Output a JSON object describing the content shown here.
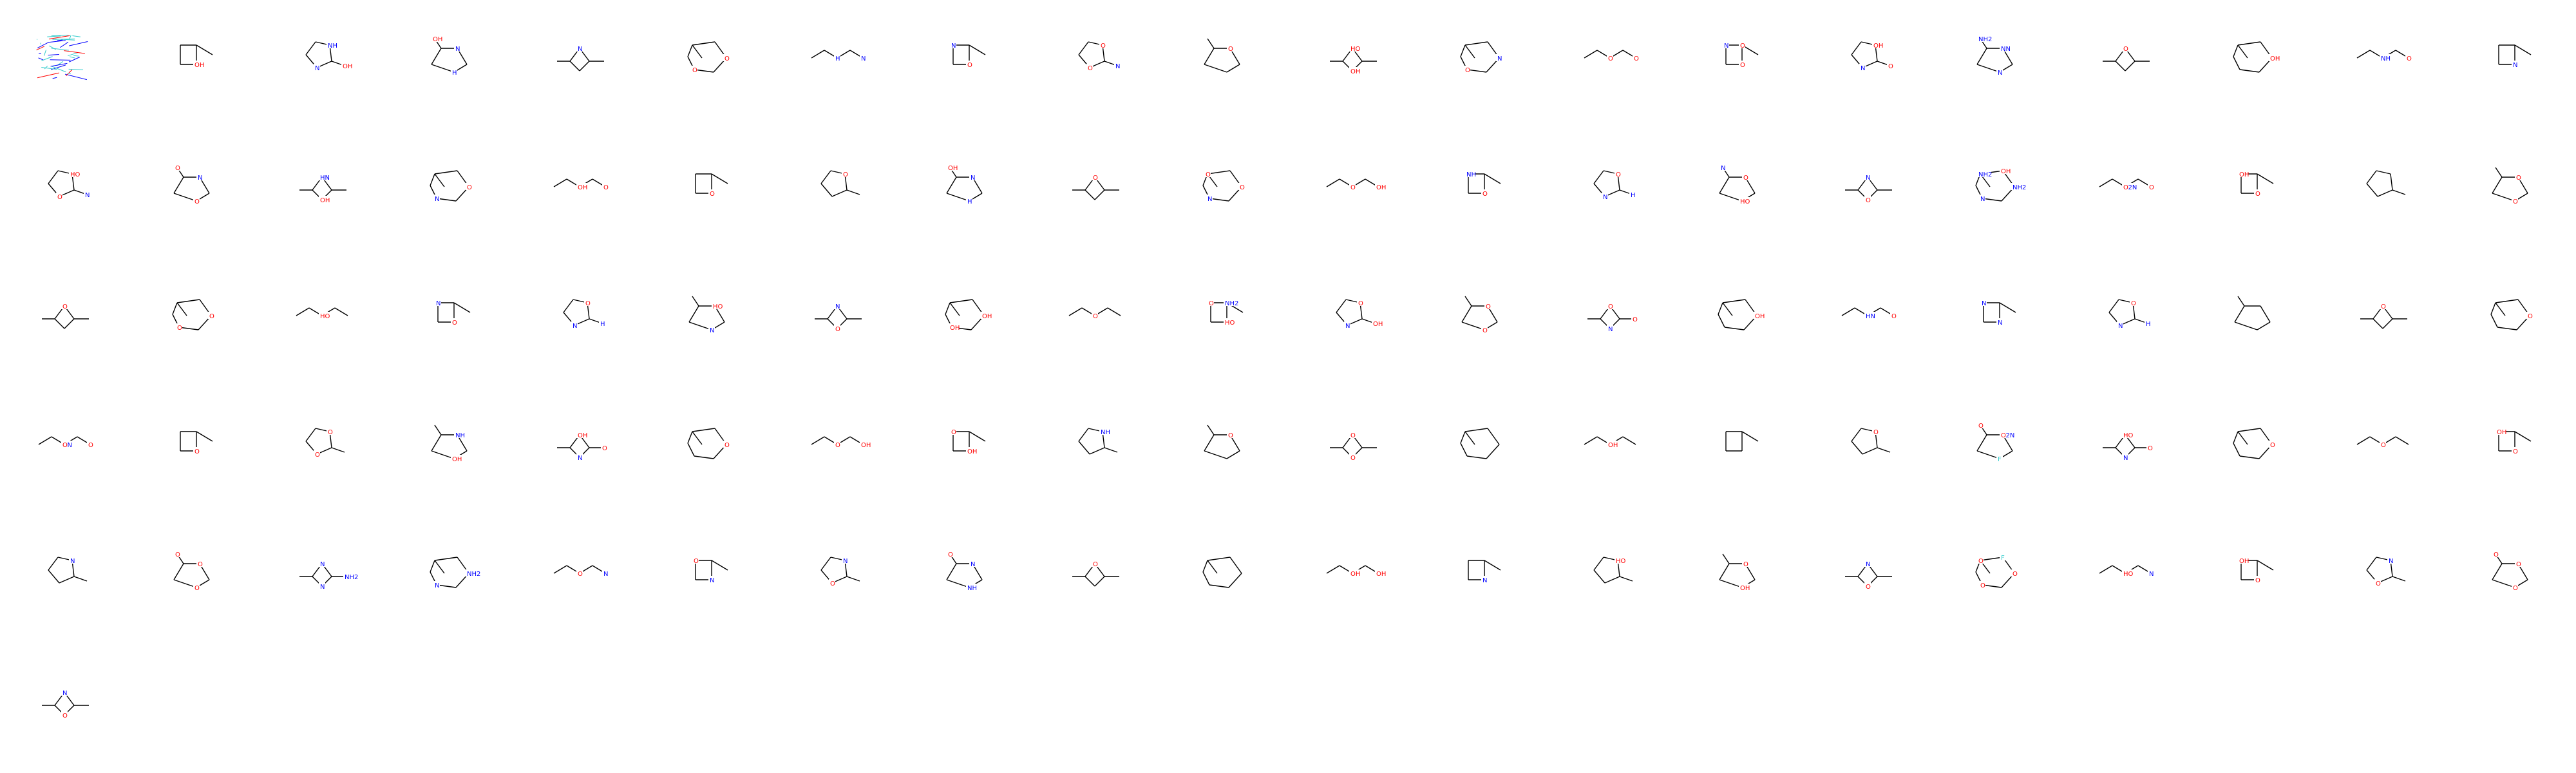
{
  "grid": {
    "columns": 20,
    "rows": 6,
    "count": 101
  },
  "colors": {
    "bond": "#000000",
    "O": "#ff0000",
    "N": "#0000ff",
    "F": "#33cccc",
    "cluster_cyan": "#33cccc"
  },
  "molecules": [
    {
      "id": "m0",
      "kind": "cluster"
    },
    {
      "id": "m1",
      "labels": [
        {
          "t": "OH",
          "c": "O"
        }
      ]
    },
    {
      "id": "m2",
      "labels": [
        {
          "t": "NH",
          "c": "N"
        },
        {
          "t": "N",
          "c": "N"
        },
        {
          "t": "OH",
          "c": "O"
        }
      ]
    },
    {
      "id": "m3",
      "labels": [
        {
          "t": "N",
          "c": "N"
        },
        {
          "t": "H",
          "c": "N"
        },
        {
          "t": "OH",
          "c": "O"
        }
      ]
    },
    {
      "id": "m4",
      "labels": [
        {
          "t": "N",
          "c": "N"
        }
      ]
    },
    {
      "id": "m5",
      "labels": [
        {
          "t": "O",
          "c": "O"
        },
        {
          "t": "O",
          "c": "O"
        }
      ]
    },
    {
      "id": "m6",
      "labels": [
        {
          "t": "O",
          "c": "O"
        },
        {
          "t": "N",
          "c": "N"
        },
        {
          "t": "H",
          "c": "N"
        }
      ]
    },
    {
      "id": "m7",
      "labels": [
        {
          "t": "O",
          "c": "O"
        },
        {
          "t": "N",
          "c": "N"
        }
      ]
    },
    {
      "id": "m8",
      "labels": [
        {
          "t": "O",
          "c": "O"
        },
        {
          "t": "O",
          "c": "O"
        },
        {
          "t": "N",
          "c": "N"
        }
      ]
    },
    {
      "id": "m9",
      "labels": [
        {
          "t": "O",
          "c": "O"
        }
      ]
    },
    {
      "id": "m10",
      "labels": [
        {
          "t": "HO",
          "c": "O"
        },
        {
          "t": "OH",
          "c": "O"
        }
      ]
    },
    {
      "id": "m11",
      "labels": [
        {
          "t": "N",
          "c": "N"
        },
        {
          "t": "O",
          "c": "O"
        }
      ]
    },
    {
      "id": "m12",
      "labels": [
        {
          "t": "O",
          "c": "O"
        },
        {
          "t": "O",
          "c": "O"
        }
      ]
    },
    {
      "id": "m13",
      "labels": [
        {
          "t": "O",
          "c": "O"
        },
        {
          "t": "N",
          "c": "N"
        },
        {
          "t": "O",
          "c": "O"
        }
      ]
    },
    {
      "id": "m14",
      "labels": [
        {
          "t": "OH",
          "c": "O"
        },
        {
          "t": "N",
          "c": "N"
        },
        {
          "t": "O",
          "c": "O"
        }
      ]
    },
    {
      "id": "m15",
      "labels": [
        {
          "t": "HN",
          "c": "N"
        },
        {
          "t": "N",
          "c": "N"
        },
        {
          "t": "NH2",
          "c": "N"
        },
        {
          "t": "N",
          "c": "N"
        }
      ]
    },
    {
      "id": "m16",
      "labels": [
        {
          "t": "O",
          "c": "O"
        }
      ]
    },
    {
      "id": "m17",
      "labels": [
        {
          "t": "OH",
          "c": "O"
        }
      ]
    },
    {
      "id": "m18",
      "labels": [
        {
          "t": "O",
          "c": "O"
        },
        {
          "t": "O",
          "c": "O"
        },
        {
          "t": "NH",
          "c": "N"
        }
      ]
    },
    {
      "id": "m19",
      "labels": [
        {
          "t": "N",
          "c": "N"
        }
      ]
    },
    {
      "id": "m20",
      "labels": [
        {
          "t": "HO",
          "c": "O"
        },
        {
          "t": "O",
          "c": "O"
        },
        {
          "t": "N",
          "c": "N"
        }
      ]
    },
    {
      "id": "m21",
      "labels": [
        {
          "t": "N",
          "c": "N"
        },
        {
          "t": "O",
          "c": "O"
        },
        {
          "t": "O",
          "c": "O"
        }
      ]
    },
    {
      "id": "m22",
      "labels": [
        {
          "t": "HN",
          "c": "N"
        },
        {
          "t": "OH",
          "c": "O"
        }
      ]
    },
    {
      "id": "m23",
      "labels": [
        {
          "t": "O",
          "c": "O"
        },
        {
          "t": "N",
          "c": "N"
        }
      ]
    },
    {
      "id": "m24",
      "labels": [
        {
          "t": "OH",
          "c": "O"
        },
        {
          "t": "O",
          "c": "O"
        },
        {
          "t": "O",
          "c": "O"
        }
      ]
    },
    {
      "id": "m25",
      "labels": [
        {
          "t": "O",
          "c": "O"
        }
      ]
    },
    {
      "id": "m26",
      "labels": [
        {
          "t": "O",
          "c": "O"
        }
      ]
    },
    {
      "id": "m27",
      "labels": [
        {
          "t": "N",
          "c": "N"
        },
        {
          "t": "H",
          "c": "N"
        },
        {
          "t": "OH",
          "c": "O"
        }
      ]
    },
    {
      "id": "m28",
      "labels": [
        {
          "t": "O",
          "c": "O"
        }
      ]
    },
    {
      "id": "m29",
      "labels": [
        {
          "t": "O",
          "c": "O"
        },
        {
          "t": "N",
          "c": "N"
        },
        {
          "t": "O",
          "c": "O"
        }
      ]
    },
    {
      "id": "m30",
      "labels": [
        {
          "t": "O",
          "c": "O"
        },
        {
          "t": "OH",
          "c": "O"
        }
      ]
    },
    {
      "id": "m31",
      "labels": [
        {
          "t": "O",
          "c": "O"
        },
        {
          "t": "NH",
          "c": "N"
        }
      ]
    },
    {
      "id": "m32",
      "labels": [
        {
          "t": "O",
          "c": "O"
        },
        {
          "t": "N",
          "c": "N"
        },
        {
          "t": "H",
          "c": "N"
        }
      ]
    },
    {
      "id": "m33",
      "labels": [
        {
          "t": "O",
          "c": "O"
        },
        {
          "t": "HO",
          "c": "O"
        },
        {
          "t": "N",
          "c": "N"
        }
      ]
    },
    {
      "id": "m34",
      "labels": [
        {
          "t": "N",
          "c": "N"
        },
        {
          "t": "O",
          "c": "O"
        }
      ]
    },
    {
      "id": "m35",
      "labels": [
        {
          "t": "NH2",
          "c": "N"
        },
        {
          "t": "N",
          "c": "N"
        },
        {
          "t": "NH2",
          "c": "N"
        },
        {
          "t": "OH",
          "c": "O"
        }
      ]
    },
    {
      "id": "m36",
      "labels": [
        {
          "t": "H2N",
          "c": "N"
        },
        {
          "t": "O",
          "c": "O"
        },
        {
          "t": "O",
          "c": "O"
        },
        {
          "t": "O",
          "c": "O"
        }
      ]
    },
    {
      "id": "m37",
      "labels": [
        {
          "t": "O",
          "c": "O"
        },
        {
          "t": "OH",
          "c": "O"
        }
      ]
    },
    {
      "id": "m38",
      "labels": []
    },
    {
      "id": "m39",
      "labels": [
        {
          "t": "O",
          "c": "O"
        },
        {
          "t": "O",
          "c": "O"
        }
      ]
    },
    {
      "id": "m40",
      "labels": [
        {
          "t": "O",
          "c": "O"
        }
      ]
    },
    {
      "id": "m41",
      "labels": [
        {
          "t": "O",
          "c": "O"
        },
        {
          "t": "O",
          "c": "O"
        }
      ]
    },
    {
      "id": "m42",
      "labels": [
        {
          "t": "HO",
          "c": "O"
        }
      ]
    },
    {
      "id": "m43",
      "labels": [
        {
          "t": "O",
          "c": "O"
        },
        {
          "t": "N",
          "c": "N"
        }
      ]
    },
    {
      "id": "m44",
      "labels": [
        {
          "t": "O",
          "c": "O"
        },
        {
          "t": "N",
          "c": "N"
        },
        {
          "t": "H",
          "c": "N"
        }
      ]
    },
    {
      "id": "m45",
      "labels": [
        {
          "t": "HO",
          "c": "O"
        },
        {
          "t": "N",
          "c": "N"
        }
      ]
    },
    {
      "id": "m46",
      "labels": [
        {
          "t": "N",
          "c": "N"
        },
        {
          "t": "O",
          "c": "O"
        }
      ]
    },
    {
      "id": "m47",
      "labels": [
        {
          "t": "OH",
          "c": "O"
        },
        {
          "t": "OH",
          "c": "O"
        }
      ]
    },
    {
      "id": "m48",
      "labels": [
        {
          "t": "O",
          "c": "O"
        }
      ]
    },
    {
      "id": "m49",
      "labels": [
        {
          "t": "HO",
          "c": "O"
        },
        {
          "t": "O",
          "c": "O"
        },
        {
          "t": "NH2",
          "c": "N"
        }
      ]
    },
    {
      "id": "m50",
      "labels": [
        {
          "t": "O",
          "c": "O"
        },
        {
          "t": "N",
          "c": "N"
        },
        {
          "t": "OH",
          "c": "O"
        }
      ]
    },
    {
      "id": "m51",
      "labels": [
        {
          "t": "O",
          "c": "O"
        },
        {
          "t": "O",
          "c": "O"
        }
      ]
    },
    {
      "id": "m52",
      "labels": [
        {
          "t": "O",
          "c": "O"
        },
        {
          "t": "N",
          "c": "N"
        },
        {
          "t": "O",
          "c": "O"
        }
      ]
    },
    {
      "id": "m53",
      "labels": [
        {
          "t": "OH",
          "c": "O"
        }
      ]
    },
    {
      "id": "m54",
      "labels": [
        {
          "t": "HN",
          "c": "N"
        },
        {
          "t": "O",
          "c": "O"
        }
      ]
    },
    {
      "id": "m55",
      "labels": [
        {
          "t": "N",
          "c": "N"
        },
        {
          "t": "N",
          "c": "N"
        }
      ]
    },
    {
      "id": "m56",
      "labels": [
        {
          "t": "O",
          "c": "O"
        },
        {
          "t": "N",
          "c": "N"
        },
        {
          "t": "H",
          "c": "N"
        },
        {
          "t": "O",
          "c": "O"
        }
      ]
    },
    {
      "id": "m57",
      "labels": []
    },
    {
      "id": "m58",
      "labels": [
        {
          "t": "O",
          "c": "O"
        }
      ]
    },
    {
      "id": "m59",
      "labels": [
        {
          "t": "O",
          "c": "O"
        }
      ]
    },
    {
      "id": "m60",
      "labels": [
        {
          "t": "HN",
          "c": "N"
        },
        {
          "t": "O",
          "c": "O"
        },
        {
          "t": "O",
          "c": "O"
        }
      ]
    },
    {
      "id": "m61",
      "labels": [
        {
          "t": "O",
          "c": "O"
        }
      ]
    },
    {
      "id": "m62",
      "labels": [
        {
          "t": "O",
          "c": "O"
        },
        {
          "t": "O",
          "c": "O"
        }
      ]
    },
    {
      "id": "m63",
      "labels": [
        {
          "t": "NH",
          "c": "N"
        },
        {
          "t": "OH",
          "c": "O"
        }
      ]
    },
    {
      "id": "m64",
      "labels": [
        {
          "t": "OH",
          "c": "O"
        },
        {
          "t": "N",
          "c": "N"
        },
        {
          "t": "O",
          "c": "O"
        }
      ]
    },
    {
      "id": "m65",
      "labels": [
        {
          "t": "O",
          "c": "O"
        }
      ]
    },
    {
      "id": "m66",
      "labels": [
        {
          "t": "O",
          "c": "O"
        },
        {
          "t": "OH",
          "c": "O"
        }
      ]
    },
    {
      "id": "m67",
      "labels": [
        {
          "t": "OH",
          "c": "O"
        },
        {
          "t": "O",
          "c": "O"
        }
      ]
    },
    {
      "id": "m68",
      "labels": [
        {
          "t": "NH",
          "c": "N"
        }
      ]
    },
    {
      "id": "m69",
      "labels": [
        {
          "t": "O",
          "c": "O"
        }
      ]
    },
    {
      "id": "m70",
      "labels": [
        {
          "t": "O",
          "c": "O"
        },
        {
          "t": "O",
          "c": "O"
        }
      ]
    },
    {
      "id": "m71",
      "labels": []
    },
    {
      "id": "m72",
      "labels": [
        {
          "t": "OH",
          "c": "O"
        }
      ]
    },
    {
      "id": "m73",
      "labels": []
    },
    {
      "id": "m74",
      "labels": [
        {
          "t": "O",
          "c": "O"
        }
      ]
    },
    {
      "id": "m75",
      "labels": [
        {
          "t": "H2N",
          "c": "N"
        },
        {
          "t": "F",
          "c": "F"
        },
        {
          "t": "O",
          "c": "O"
        },
        {
          "t": "O",
          "c": "O"
        }
      ]
    },
    {
      "id": "m76",
      "labels": [
        {
          "t": "HO",
          "c": "O"
        },
        {
          "t": "N",
          "c": "N"
        },
        {
          "t": "O",
          "c": "O"
        }
      ]
    },
    {
      "id": "m77",
      "labels": [
        {
          "t": "O",
          "c": "O"
        }
      ]
    },
    {
      "id": "m78",
      "labels": [
        {
          "t": "O",
          "c": "O"
        }
      ]
    },
    {
      "id": "m79",
      "labels": [
        {
          "t": "O",
          "c": "O"
        },
        {
          "t": "OH",
          "c": "O"
        }
      ]
    },
    {
      "id": "m80",
      "labels": [
        {
          "t": "N",
          "c": "N"
        }
      ]
    },
    {
      "id": "m81",
      "labels": [
        {
          "t": "O",
          "c": "O"
        },
        {
          "t": "O",
          "c": "O"
        },
        {
          "t": "O",
          "c": "O"
        }
      ]
    },
    {
      "id": "m82",
      "labels": [
        {
          "t": "N",
          "c": "N"
        },
        {
          "t": "N",
          "c": "N"
        },
        {
          "t": "NH2",
          "c": "N"
        }
      ]
    },
    {
      "id": "m83",
      "labels": [
        {
          "t": "NH2",
          "c": "N"
        },
        {
          "t": "N",
          "c": "N"
        }
      ]
    },
    {
      "id": "m84",
      "labels": [
        {
          "t": "O",
          "c": "O"
        },
        {
          "t": "N",
          "c": "N"
        }
      ]
    },
    {
      "id": "m85",
      "labels": [
        {
          "t": "N",
          "c": "N"
        },
        {
          "t": "O",
          "c": "O"
        }
      ]
    },
    {
      "id": "m86",
      "labels": [
        {
          "t": "N",
          "c": "N"
        },
        {
          "t": "O",
          "c": "O"
        }
      ]
    },
    {
      "id": "m87",
      "labels": [
        {
          "t": "N",
          "c": "N"
        },
        {
          "t": "NH",
          "c": "N"
        },
        {
          "t": "O",
          "c": "O"
        }
      ]
    },
    {
      "id": "m88",
      "labels": [
        {
          "t": "O",
          "c": "O"
        }
      ]
    },
    {
      "id": "m89",
      "labels": []
    },
    {
      "id": "m90",
      "labels": [
        {
          "t": "N",
          "c": "N"
        },
        {
          "t": "OH",
          "c": "O"
        },
        {
          "t": "OH",
          "c": "O"
        }
      ]
    },
    {
      "id": "m91",
      "labels": [
        {
          "t": "N",
          "c": "N"
        }
      ]
    },
    {
      "id": "m92",
      "labels": [
        {
          "t": "HO",
          "c": "O"
        }
      ]
    },
    {
      "id": "m93",
      "labels": [
        {
          "t": "O",
          "c": "O"
        },
        {
          "t": "OH",
          "c": "O"
        }
      ]
    },
    {
      "id": "m94",
      "labels": [
        {
          "t": "N",
          "c": "N"
        },
        {
          "t": "O",
          "c": "O"
        }
      ]
    },
    {
      "id": "m95",
      "labels": [
        {
          "t": "O",
          "c": "O"
        },
        {
          "t": "O",
          "c": "O"
        },
        {
          "t": "O",
          "c": "O"
        },
        {
          "t": "F",
          "c": "F"
        }
      ]
    },
    {
      "id": "m96",
      "labels": [
        {
          "t": "HO",
          "c": "O"
        },
        {
          "t": "N",
          "c": "N"
        }
      ]
    },
    {
      "id": "m97",
      "labels": [
        {
          "t": "O",
          "c": "O"
        },
        {
          "t": "OH",
          "c": "O"
        }
      ]
    },
    {
      "id": "m98",
      "labels": [
        {
          "t": "N",
          "c": "N"
        },
        {
          "t": "O",
          "c": "O"
        }
      ]
    },
    {
      "id": "m99",
      "labels": [
        {
          "t": "O",
          "c": "O"
        },
        {
          "t": "O",
          "c": "O"
        },
        {
          "t": "O",
          "c": "O"
        }
      ]
    },
    {
      "id": "m100",
      "labels": [
        {
          "t": "N",
          "c": "N"
        },
        {
          "t": "O",
          "c": "O"
        }
      ]
    }
  ]
}
